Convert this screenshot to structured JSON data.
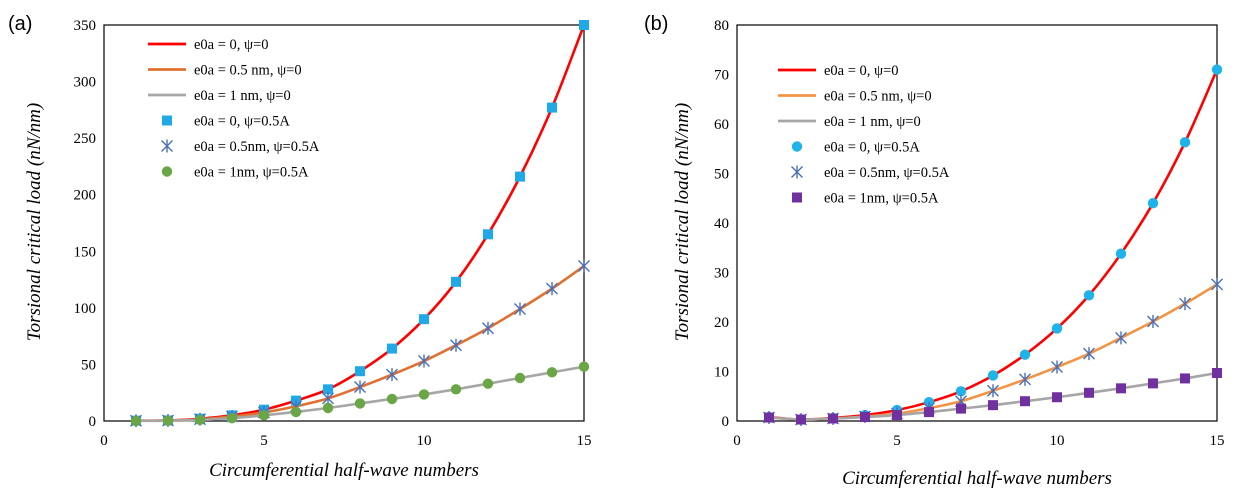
{
  "chart_data": [
    {
      "panel_label": "(a)",
      "type": "line",
      "xlabel": "Circumferential half-wave numbers",
      "ylabel": "Torsional critical load (nN/nm)",
      "xlim": [
        0,
        15
      ],
      "ylim": [
        0,
        350
      ],
      "xticks": [
        0,
        5,
        10,
        15
      ],
      "yticks": [
        0,
        50,
        100,
        150,
        200,
        250,
        300,
        350
      ],
      "grid": false,
      "legend_position": "top-left",
      "x": [
        1,
        2,
        3,
        4,
        5,
        6,
        7,
        8,
        9,
        10,
        11,
        12,
        13,
        14,
        15
      ],
      "series": [
        {
          "name": "e0a = 0,  ψ=0",
          "kind": "line",
          "color": "#ff0000",
          "values": [
            0.3,
            0.5,
            2,
            5,
            10,
            18,
            28,
            44,
            64,
            90,
            123,
            165,
            216,
            277,
            350
          ]
        },
        {
          "name": "e0a = 0.5 nm, ψ=0",
          "kind": "line",
          "color": "#e07030",
          "values": [
            0.2,
            0.4,
            1.5,
            4,
            7.5,
            13,
            20,
            30,
            41,
            53,
            67,
            82,
            99,
            117,
            137
          ]
        },
        {
          "name": "e0a = 1 nm, ψ=0",
          "kind": "line",
          "color": "#a6a6a6",
          "values": [
            0.1,
            0.3,
            1,
            2.5,
            5,
            8,
            11.5,
            15.5,
            19.5,
            23.5,
            28,
            33,
            38,
            43,
            48
          ]
        },
        {
          "name": "e0a = 0,  ψ=0.5A",
          "kind": "marker",
          "marker": "square",
          "color": "#1fa9e6",
          "values": [
            0.3,
            0.5,
            2,
            5,
            10,
            18,
            28,
            44,
            64,
            90,
            123,
            165,
            216,
            277,
            350
          ]
        },
        {
          "name": "e0a = 0.5nm,  ψ=0.5A",
          "kind": "marker",
          "marker": "asterisk",
          "color": "#4a6eb8",
          "values": [
            0.2,
            0.4,
            1.5,
            4,
            7.5,
            13,
            20,
            30,
            41,
            53,
            67,
            82,
            99,
            117,
            137
          ]
        },
        {
          "name": "e0a = 1nm,  ψ=0.5A",
          "kind": "marker",
          "marker": "circle",
          "color": "#6aa646",
          "values": [
            0.1,
            0.3,
            1,
            2.5,
            5,
            8,
            11.5,
            15.5,
            19.5,
            23.5,
            28,
            33,
            38,
            43,
            48
          ]
        }
      ]
    },
    {
      "panel_label": "(b)",
      "type": "line",
      "xlabel": "Circumferential half-wave numbers",
      "ylabel": "Torsional critical load (nN/nm)",
      "xlim": [
        0,
        15
      ],
      "ylim": [
        0,
        80
      ],
      "xticks": [
        0,
        5,
        10,
        15
      ],
      "yticks": [
        0,
        10,
        20,
        30,
        40,
        50,
        60,
        70,
        80
      ],
      "grid": false,
      "legend_position": "top-left",
      "x": [
        1,
        2,
        3,
        4,
        5,
        6,
        7,
        8,
        9,
        10,
        11,
        12,
        13,
        14,
        15
      ],
      "series": [
        {
          "name": "e0a = 0,  ψ=0",
          "kind": "line",
          "color": "#ff0000",
          "values": [
            0.8,
            0.3,
            0.6,
            1.2,
            2.2,
            3.8,
            6,
            9.2,
            13.4,
            18.7,
            25.4,
            33.8,
            44,
            56.3,
            71
          ]
        },
        {
          "name": "e0a = 0.5 nm, ψ=0",
          "kind": "line",
          "color": "#f29444",
          "values": [
            0.7,
            0.3,
            0.5,
            0.9,
            1.5,
            2.6,
            4,
            6.1,
            8.4,
            10.9,
            13.6,
            16.8,
            20.1,
            23.7,
            27.6
          ]
        },
        {
          "name": "e0a = 1 nm, ψ=0",
          "kind": "line",
          "color": "#a6a6a6",
          "values": [
            0.7,
            0.3,
            0.5,
            0.8,
            1.2,
            1.8,
            2.5,
            3.2,
            4,
            4.8,
            5.7,
            6.6,
            7.6,
            8.6,
            9.7
          ]
        },
        {
          "name": "e0a = 0,  ψ=0.5A",
          "kind": "marker",
          "marker": "circle",
          "color": "#1fb3ea",
          "values": [
            0.8,
            0.3,
            0.6,
            1.2,
            2.2,
            3.8,
            6,
            9.2,
            13.4,
            18.7,
            25.4,
            33.8,
            44,
            56.3,
            71
          ]
        },
        {
          "name": "e0a = 0.5nm,  ψ=0.5A",
          "kind": "marker",
          "marker": "asterisk",
          "color": "#4a6eb8",
          "values": [
            0.7,
            0.3,
            0.5,
            0.9,
            1.5,
            2.6,
            4,
            6.1,
            8.4,
            10.9,
            13.6,
            16.8,
            20.1,
            23.7,
            27.6
          ]
        },
        {
          "name": "e0a = 1nm,  ψ=0.5A",
          "kind": "marker",
          "marker": "square",
          "color": "#7030a0",
          "values": [
            0.7,
            0.3,
            0.5,
            0.8,
            1.2,
            1.8,
            2.5,
            3.2,
            4,
            4.8,
            5.7,
            6.6,
            7.6,
            8.6,
            9.7
          ]
        }
      ]
    }
  ]
}
